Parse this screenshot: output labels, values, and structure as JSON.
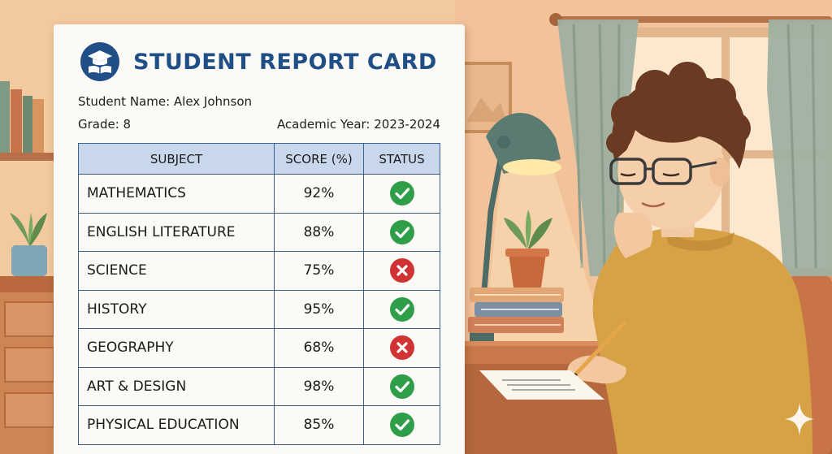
{
  "report_card": {
    "title": "STUDENT REPORT CARD",
    "student_name_line": "Student Name: Alex Johnson",
    "grade_line": "Grade: 8",
    "academic_year_line": "Academic Year: 2023-2024",
    "columns": [
      "SUBJECT",
      "SCORE (%)",
      "STATUS"
    ],
    "rows": [
      {
        "subject": "MATHEMATICS",
        "score": "92%",
        "status": "pass"
      },
      {
        "subject": "ENGLISH LITERATURE",
        "score": "88%",
        "status": "pass"
      },
      {
        "subject": "SCIENCE",
        "score": "75%",
        "status": "fail"
      },
      {
        "subject": "HISTORY",
        "score": "95%",
        "status": "pass"
      },
      {
        "subject": "GEOGRAPHY",
        "score": "68%",
        "status": "fail"
      },
      {
        "subject": "ART & DESIGN",
        "score": "98%",
        "status": "pass"
      },
      {
        "subject": "PHYSICAL EDUCATION",
        "score": "85%",
        "status": "pass"
      }
    ]
  },
  "colors": {
    "title": "#1f4f86",
    "header_fill": "#c9d7ec",
    "grid": "#3c5f8e",
    "pass": "#2e9e48",
    "fail": "#d03333",
    "wall": "#f3c9a0"
  },
  "icons": {
    "logo": "graduation-cap-book-icon",
    "pass": "check-circle-icon",
    "fail": "x-circle-icon"
  }
}
